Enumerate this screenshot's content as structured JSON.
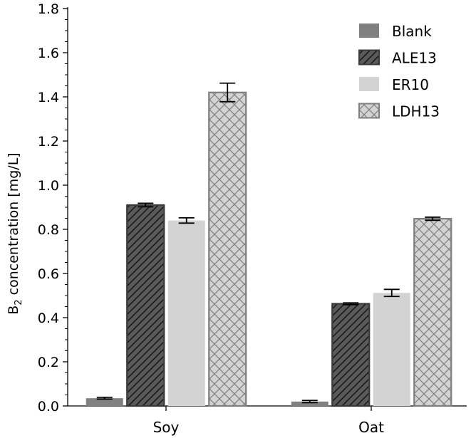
{
  "chart_data": {
    "type": "bar",
    "categories": [
      "Soy",
      "Oat"
    ],
    "ylabel_main": "B",
    "ylabel_sub": "2",
    "ylabel_rest": " concentration [mg/L]",
    "ylim": [
      0,
      1.8
    ],
    "yticks": [
      "0.0",
      "0.2",
      "0.4",
      "0.6",
      "0.8",
      "1.0",
      "1.2",
      "1.4",
      "1.6",
      "1.8"
    ],
    "grid": false,
    "legend_position": "top-right",
    "series": [
      {
        "name": "Blank",
        "values": [
          0.035,
          0.02
        ],
        "errors": [
          0.004,
          0.005
        ],
        "color": "#808080",
        "pattern": "solid"
      },
      {
        "name": "ALE13",
        "values": [
          0.91,
          0.463
        ],
        "errors": [
          0.008,
          0.004
        ],
        "color": "#5a5a5a",
        "pattern": "diagonal"
      },
      {
        "name": "ER10",
        "values": [
          0.84,
          0.512
        ],
        "errors": [
          0.012,
          0.016
        ],
        "color": "#d3d3d3",
        "pattern": "solid"
      },
      {
        "name": "LDH13",
        "values": [
          1.42,
          0.848
        ],
        "errors": [
          0.042,
          0.007
        ],
        "color": "#d3d3d3",
        "pattern": "crosshatch"
      }
    ]
  }
}
